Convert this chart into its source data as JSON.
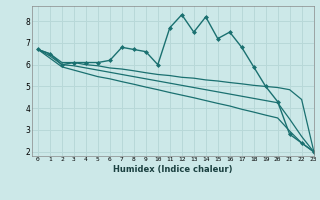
{
  "title": "",
  "xlabel": "Humidex (Indice chaleur)",
  "ylabel": "",
  "xlim": [
    -0.5,
    23
  ],
  "ylim": [
    1.8,
    8.7
  ],
  "bg_color": "#cce8e8",
  "grid_color": "#b8d8d8",
  "line_color": "#1a7070",
  "xticks": [
    0,
    1,
    2,
    3,
    4,
    5,
    6,
    7,
    8,
    9,
    10,
    11,
    12,
    13,
    14,
    15,
    16,
    17,
    18,
    19,
    20,
    21,
    22,
    23
  ],
  "yticks": [
    2,
    3,
    4,
    5,
    6,
    7,
    8
  ],
  "series": [
    {
      "x": [
        0,
        1,
        2,
        3,
        4,
        5,
        6,
        7,
        8,
        9,
        10,
        11,
        12,
        13,
        14,
        15,
        16,
        17,
        18,
        19,
        20,
        21,
        22,
        23
      ],
      "y": [
        6.7,
        6.5,
        6.0,
        6.1,
        6.1,
        6.1,
        6.2,
        6.8,
        6.7,
        6.6,
        6.0,
        7.7,
        8.3,
        7.5,
        8.2,
        7.2,
        7.5,
        6.8,
        5.9,
        5.0,
        4.3,
        2.8,
        2.4,
        2.0
      ],
      "marker": "D",
      "markersize": 2.0,
      "linewidth": 1.0
    },
    {
      "x": [
        0,
        1,
        2,
        3,
        4,
        5,
        6,
        7,
        8,
        9,
        10,
        11,
        12,
        13,
        14,
        15,
        16,
        17,
        18,
        19,
        20,
        21,
        22,
        23
      ],
      "y": [
        6.7,
        6.5,
        6.1,
        6.1,
        6.0,
        5.95,
        5.85,
        5.8,
        5.72,
        5.63,
        5.55,
        5.5,
        5.42,
        5.38,
        5.3,
        5.25,
        5.18,
        5.12,
        5.05,
        5.0,
        4.95,
        4.85,
        4.4,
        2.05
      ],
      "marker": null,
      "markersize": 0,
      "linewidth": 0.9
    },
    {
      "x": [
        0,
        1,
        2,
        3,
        4,
        5,
        6,
        7,
        8,
        9,
        10,
        11,
        12,
        13,
        14,
        15,
        16,
        17,
        18,
        19,
        20,
        21,
        22,
        23
      ],
      "y": [
        6.7,
        6.4,
        6.0,
        5.95,
        5.85,
        5.75,
        5.65,
        5.55,
        5.45,
        5.35,
        5.25,
        5.15,
        5.05,
        4.95,
        4.85,
        4.75,
        4.65,
        4.55,
        4.45,
        4.35,
        4.25,
        3.5,
        2.7,
        2.0
      ],
      "marker": null,
      "markersize": 0,
      "linewidth": 0.9
    },
    {
      "x": [
        0,
        1,
        2,
        3,
        4,
        5,
        6,
        7,
        8,
        9,
        10,
        11,
        12,
        13,
        14,
        15,
        16,
        17,
        18,
        19,
        20,
        21,
        22,
        23
      ],
      "y": [
        6.7,
        6.3,
        5.9,
        5.75,
        5.6,
        5.45,
        5.35,
        5.22,
        5.1,
        4.97,
        4.85,
        4.72,
        4.6,
        4.48,
        4.35,
        4.22,
        4.1,
        3.95,
        3.82,
        3.68,
        3.55,
        2.95,
        2.4,
        2.0
      ],
      "marker": null,
      "markersize": 0,
      "linewidth": 0.9
    }
  ]
}
